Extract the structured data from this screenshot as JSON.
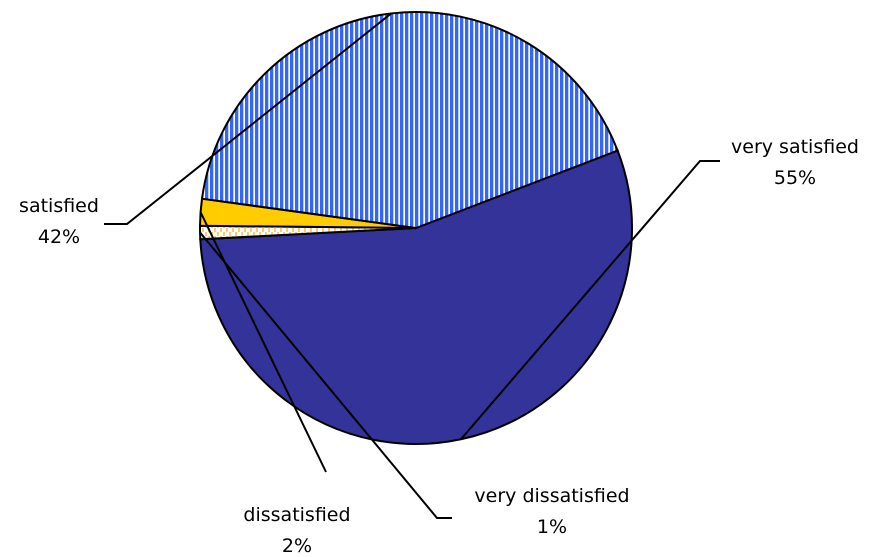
{
  "chart_data": {
    "type": "pie",
    "title": "",
    "start_angle_deg": -21,
    "direction": "clockwise",
    "slices": [
      {
        "label": "very satisfied",
        "value": 55,
        "value_label": "55%",
        "color": "#333399",
        "pattern": "solid"
      },
      {
        "label": "very dissatisfied",
        "value": 1,
        "value_label": "1%",
        "color": "#ffffcc",
        "pattern": "dashed-hatch"
      },
      {
        "label": "dissatisfied",
        "value": 2,
        "value_label": "2%",
        "color": "#ffcc00",
        "pattern": "solid"
      },
      {
        "label": "satisfied",
        "value": 42,
        "value_label": "42%",
        "color": "#3366ff",
        "pattern": "vertical-stripes"
      }
    ]
  }
}
